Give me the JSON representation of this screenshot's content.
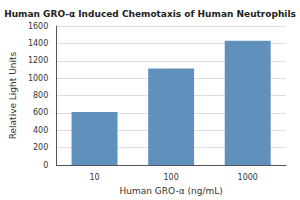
{
  "chart_data": {
    "type": "bar",
    "title": "Human GRO-α Induced Chemotaxis of Human Neutrophils",
    "xlabel": "Human GRO-α (ng/mL)",
    "ylabel": "Relative Light Units",
    "categories": [
      "10",
      "100",
      "1000"
    ],
    "values": [
      610,
      1110,
      1430
    ],
    "color": "#6090bc",
    "ylim": [
      0,
      1600
    ],
    "yticks": [
      0,
      200,
      400,
      600,
      800,
      1000,
      1200,
      1400,
      1600
    ],
    "grid": true
  }
}
